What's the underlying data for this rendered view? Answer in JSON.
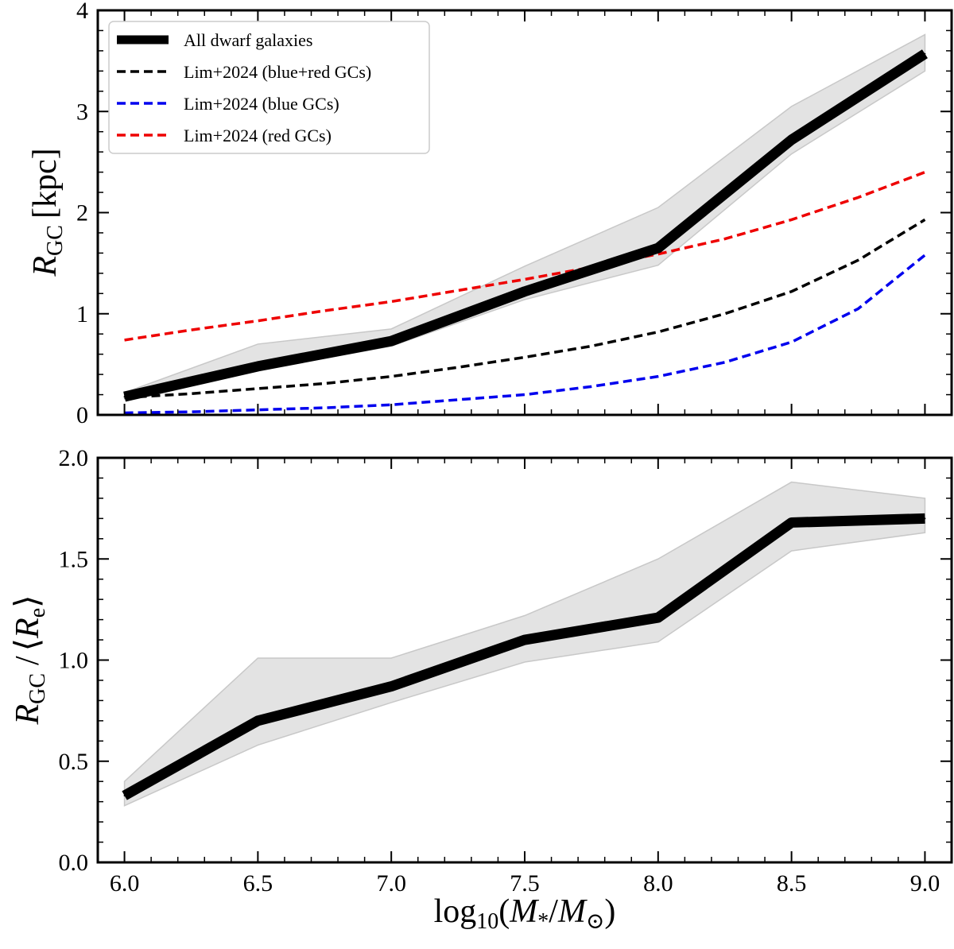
{
  "chart_data": [
    {
      "type": "line",
      "panel": "top",
      "ylabel": {
        "main": "R",
        "sub": "GC",
        "unit": "[kpc]"
      },
      "xlim": [
        5.9,
        9.1
      ],
      "ylim": [
        0,
        4
      ],
      "yticks": [
        0,
        1,
        2,
        3,
        4
      ],
      "ytick_labels": [
        "0",
        "1",
        "2",
        "3",
        "4"
      ],
      "xticks": [
        6.0,
        6.5,
        7.0,
        7.5,
        8.0,
        8.5,
        9.0
      ],
      "grid": false,
      "legend_placement": "top-left",
      "series": [
        {
          "name": "All dwarf galaxies",
          "color": "#000000",
          "style": "solid-thick",
          "x": [
            6.0,
            6.5,
            7.0,
            7.5,
            8.0,
            8.5,
            9.0
          ],
          "y": [
            0.18,
            0.48,
            0.73,
            1.22,
            1.65,
            2.72,
            3.57
          ],
          "band_lower": [
            0.16,
            0.44,
            0.68,
            1.14,
            1.48,
            2.58,
            3.4
          ],
          "band_upper": [
            0.22,
            0.7,
            0.85,
            1.47,
            2.05,
            3.05,
            3.76
          ]
        },
        {
          "name": "Lim+2024 (blue+red GCs)",
          "color": "#000000",
          "style": "dashed",
          "x": [
            6.0,
            6.25,
            6.5,
            6.75,
            7.0,
            7.25,
            7.5,
            7.75,
            8.0,
            8.25,
            8.5,
            8.75,
            9.0
          ],
          "y": [
            0.17,
            0.21,
            0.26,
            0.31,
            0.38,
            0.47,
            0.57,
            0.68,
            0.82,
            1.0,
            1.22,
            1.53,
            1.93
          ]
        },
        {
          "name": "Lim+2024 (blue GCs)",
          "color": "#0000ee",
          "style": "dashed",
          "x": [
            6.0,
            6.25,
            6.5,
            6.75,
            7.0,
            7.25,
            7.5,
            7.75,
            8.0,
            8.25,
            8.5,
            8.75,
            9.0
          ],
          "y": [
            0.02,
            0.03,
            0.05,
            0.07,
            0.1,
            0.15,
            0.2,
            0.28,
            0.38,
            0.52,
            0.72,
            1.05,
            1.58
          ]
        },
        {
          "name": "Lim+2024 (red GCs)",
          "color": "#ee0000",
          "style": "dashed",
          "x": [
            6.0,
            6.25,
            6.5,
            6.75,
            7.0,
            7.25,
            7.5,
            7.75,
            8.0,
            8.25,
            8.5,
            8.75,
            9.0
          ],
          "y": [
            0.74,
            0.84,
            0.93,
            1.03,
            1.12,
            1.23,
            1.34,
            1.46,
            1.59,
            1.74,
            1.93,
            2.15,
            2.4
          ]
        }
      ]
    },
    {
      "type": "line",
      "panel": "bottom",
      "ylabel": {
        "main": "R",
        "sub": "GC",
        "denom_main": "R",
        "denom_sub": "e"
      },
      "xlabel": {
        "prefix": "log",
        "sub": "10",
        "inner": "(M",
        "star": "*",
        "slash": "/M",
        "sun": "⊙",
        "close": ")"
      },
      "xlim": [
        5.9,
        9.1
      ],
      "ylim": [
        0,
        2
      ],
      "yticks": [
        0.0,
        0.5,
        1.0,
        1.5,
        2.0
      ],
      "ytick_labels": [
        "0.0",
        "0.5",
        "1.0",
        "1.5",
        "2.0"
      ],
      "xticks": [
        6.0,
        6.5,
        7.0,
        7.5,
        8.0,
        8.5,
        9.0
      ],
      "xtick_labels": [
        "6.0",
        "6.5",
        "7.0",
        "7.5",
        "8.0",
        "8.5",
        "9.0"
      ],
      "grid": false,
      "series": [
        {
          "color": "#000000",
          "style": "solid-thick",
          "x": [
            6.0,
            6.5,
            7.0,
            7.5,
            8.0,
            8.5,
            9.0
          ],
          "y": [
            0.33,
            0.7,
            0.87,
            1.1,
            1.21,
            1.68,
            1.7
          ],
          "band_lower": [
            0.28,
            0.58,
            0.79,
            0.99,
            1.09,
            1.54,
            1.63
          ],
          "band_upper": [
            0.4,
            1.01,
            1.01,
            1.22,
            1.5,
            1.88,
            1.8
          ]
        }
      ]
    }
  ],
  "colors": {
    "band": "#e3e3e3",
    "band_edge": "#c8c8c8",
    "axis": "#000000"
  }
}
